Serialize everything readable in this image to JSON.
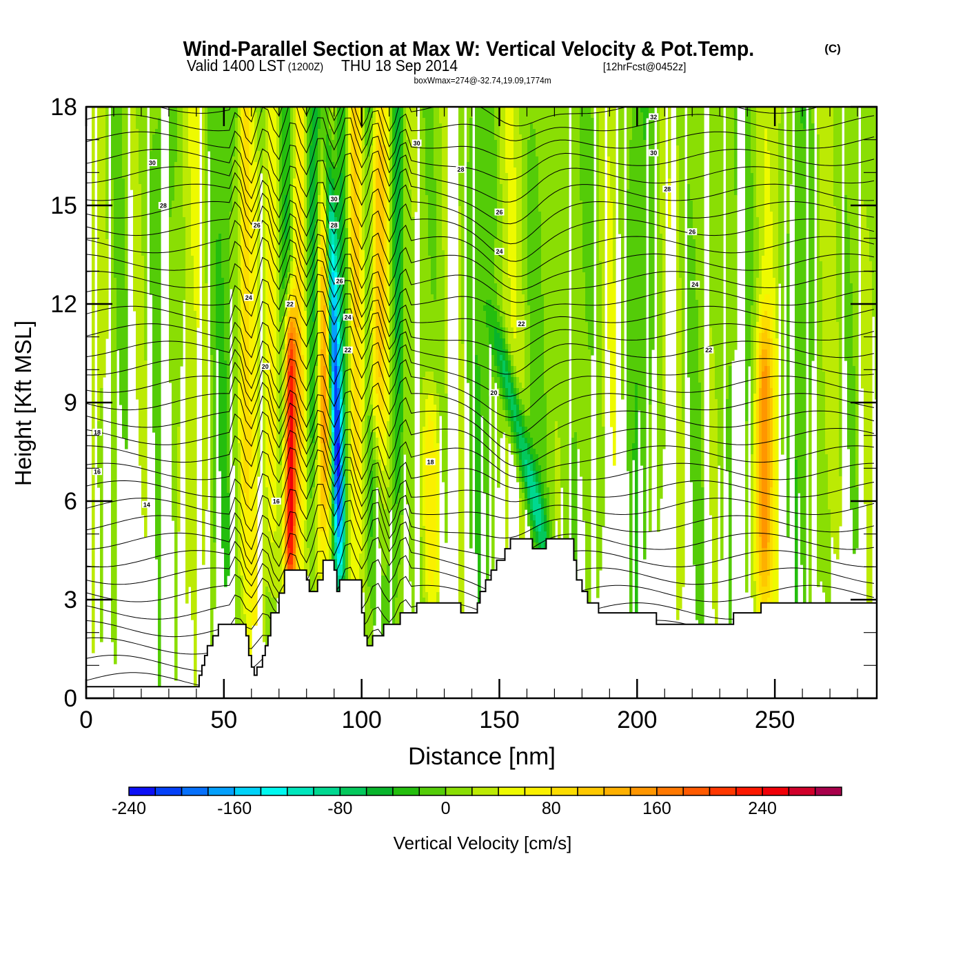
{
  "chart_data": {
    "type": "heatmap",
    "title": "Wind-Parallel Section at Max W: Vertical Velocity & Pot.Temp.",
    "title_suffix": "(C)",
    "subtitle_parts": {
      "valid": "Valid 1400 LST",
      "utc": "(1200Z)",
      "date": "THU 18 Sep 2014",
      "forecast": "[12hrFcst@0452z]"
    },
    "annotation": "boxWmax=274@-32.74,19.09,1774m",
    "xlabel": "Distance [nm]",
    "ylabel": "Height [Kft MSL]",
    "xlim": [
      0,
      287
    ],
    "ylim": [
      0,
      18
    ],
    "x_ticks": [
      0,
      50,
      100,
      150,
      200,
      250
    ],
    "x_tick_labels": [
      "0",
      "50",
      "100",
      "150",
      "200",
      "250"
    ],
    "x_minor_step": 10,
    "y_ticks": [
      0,
      3,
      6,
      9,
      12,
      15,
      18
    ],
    "y_tick_labels": [
      "0",
      "3",
      "6",
      "9",
      "12",
      "15",
      "18"
    ],
    "y_minor_step": 1,
    "colorbar": {
      "label": "Vertical Velocity [cm/s]",
      "min": -240,
      "max": 300,
      "step": 20,
      "tick_values": [
        -240,
        -160,
        -80,
        0,
        80,
        160,
        240
      ],
      "tick_labels": [
        "-240",
        "-160",
        "-80",
        "0",
        "80",
        "160",
        "240"
      ],
      "colors": [
        "#0c10f6",
        "#0440f8",
        "#0670fb",
        "#04a0fc",
        "#00d2f8",
        "#00f8f0",
        "#00e6bc",
        "#00d890",
        "#04c85c",
        "#08b42c",
        "#24be0e",
        "#54cc08",
        "#8ade04",
        "#bcea04",
        "#eefa00",
        "#faf000",
        "#fcdc00",
        "#fec800",
        "#feb000",
        "#ff9600",
        "#ff7800",
        "#ff5a00",
        "#ff3800",
        "#fc1800",
        "#f00008",
        "#d0002a",
        "#a8004a"
      ]
    },
    "w_features": [
      {
        "name": "updraft-core",
        "x": 74,
        "y_bottom": 3.2,
        "y_top": 11.5,
        "peak_w": 270
      },
      {
        "name": "updraft-secondary",
        "x": 86,
        "y_bottom": 3.6,
        "y_top": 18,
        "peak_w": 140
      },
      {
        "name": "downdraft-core",
        "x": 90,
        "y_bottom": 3.6,
        "y_top": 18,
        "peak_w": -240
      },
      {
        "name": "updraft-upper",
        "x": 105,
        "y_bottom": 8,
        "y_top": 18,
        "peak_w": 130
      },
      {
        "name": "updraft-left",
        "x": 62,
        "y_bottom": 2,
        "y_top": 18,
        "peak_w": 80
      },
      {
        "name": "downdraft-slant",
        "x": 160,
        "y_bottom": 4.8,
        "y_top": 11,
        "peak_w": -100
      },
      {
        "name": "updraft-right",
        "x": 246,
        "y_bottom": 3.2,
        "y_top": 11,
        "peak_w": 130
      },
      {
        "name": "updraft-mid",
        "x": 125,
        "y_bottom": 3,
        "y_top": 9,
        "peak_w": 70
      }
    ],
    "terrain_profile": {
      "x": [
        0,
        40,
        41,
        42,
        43,
        44,
        46,
        48,
        50,
        52,
        54,
        58,
        59,
        60,
        61,
        62,
        64,
        65,
        66,
        67,
        70,
        72,
        76,
        80,
        81,
        82,
        84,
        86,
        90,
        91,
        92,
        94,
        98,
        100,
        101,
        102,
        103,
        104,
        106,
        108,
        112,
        113,
        114,
        116,
        120,
        124,
        125,
        135,
        136,
        141,
        142,
        143,
        145,
        147,
        149,
        152,
        154,
        155,
        160,
        162,
        166,
        167,
        176,
        177,
        178,
        180,
        182,
        186,
        206,
        207,
        234,
        235,
        244,
        245,
        287
      ],
      "y": [
        0.35,
        0.35,
        0.7,
        1.0,
        1.3,
        1.6,
        1.9,
        2.25,
        2.25,
        2.25,
        2.25,
        1.9,
        1.3,
        0.95,
        0.7,
        0.95,
        1.3,
        1.6,
        1.9,
        2.6,
        3.2,
        3.9,
        3.9,
        3.6,
        3.25,
        3.25,
        3.6,
        4.2,
        3.9,
        3.25,
        3.6,
        3.6,
        3.6,
        2.6,
        1.9,
        1.6,
        1.6,
        1.9,
        1.9,
        2.25,
        2.25,
        2.25,
        2.6,
        2.6,
        2.9,
        2.9,
        2.9,
        2.9,
        2.6,
        2.6,
        2.9,
        3.25,
        3.6,
        3.9,
        4.2,
        4.55,
        4.85,
        4.85,
        4.85,
        4.55,
        4.55,
        4.85,
        4.85,
        4.2,
        3.6,
        3.25,
        2.9,
        2.6,
        2.6,
        2.25,
        2.25,
        2.6,
        2.6,
        2.9,
        2.9
      ]
    },
    "theta_contours": {
      "units": "C",
      "levels": [
        12,
        14,
        16,
        18,
        20,
        22,
        24,
        26,
        28,
        30,
        32
      ],
      "labels": [
        {
          "value": "14",
          "x": 22,
          "y": 5.9
        },
        {
          "value": "16",
          "x": 69,
          "y": 6.0
        },
        {
          "value": "16",
          "x": 4,
          "y": 6.9
        },
        {
          "value": "18",
          "x": 4,
          "y": 8.1
        },
        {
          "value": "18",
          "x": 125,
          "y": 7.2
        },
        {
          "value": "20",
          "x": 65,
          "y": 10.1
        },
        {
          "value": "20",
          "x": 148,
          "y": 9.3
        },
        {
          "value": "22",
          "x": 74,
          "y": 12.0
        },
        {
          "value": "22",
          "x": 95,
          "y": 10.6
        },
        {
          "value": "22",
          "x": 158,
          "y": 11.4
        },
        {
          "value": "22",
          "x": 226,
          "y": 10.6
        },
        {
          "value": "24",
          "x": 59,
          "y": 12.2
        },
        {
          "value": "24",
          "x": 95,
          "y": 11.6
        },
        {
          "value": "24",
          "x": 150,
          "y": 13.6
        },
        {
          "value": "24",
          "x": 221,
          "y": 12.6
        },
        {
          "value": "26",
          "x": 92,
          "y": 12.7
        },
        {
          "value": "26",
          "x": 150,
          "y": 14.8
        },
        {
          "value": "26",
          "x": 220,
          "y": 14.2
        },
        {
          "value": "26",
          "x": 62,
          "y": 14.4
        },
        {
          "value": "28",
          "x": 90,
          "y": 14.4
        },
        {
          "value": "28",
          "x": 28,
          "y": 15.0
        },
        {
          "value": "28",
          "x": 136,
          "y": 16.1
        },
        {
          "value": "28",
          "x": 211,
          "y": 15.5
        },
        {
          "value": "30",
          "x": 24,
          "y": 16.3
        },
        {
          "value": "30",
          "x": 90,
          "y": 15.2
        },
        {
          "value": "30",
          "x": 120,
          "y": 16.9
        },
        {
          "value": "30",
          "x": 206,
          "y": 16.6
        },
        {
          "value": "32",
          "x": 206,
          "y": 17.7
        }
      ]
    }
  }
}
